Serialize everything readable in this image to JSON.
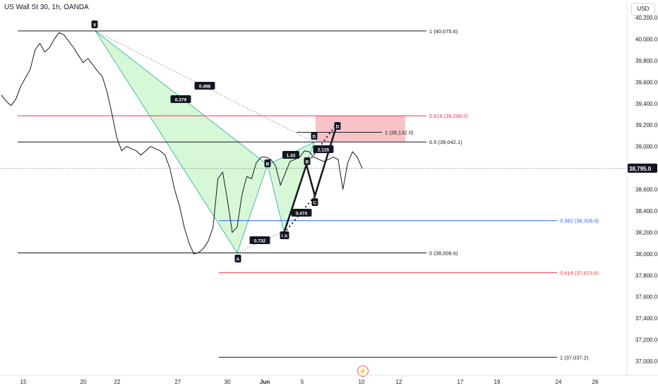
{
  "header": {
    "title": "US Wall St 30, 1h, OANDA",
    "currency": "USD"
  },
  "footer": {
    "event_icon": "lightning-icon"
  },
  "colors": {
    "price": "#131722",
    "fib_black": "#131722",
    "fib_red": "#f23645",
    "fib_blue": "#2962ff",
    "pattern_fill": "#c8f5c8",
    "pattern_edge": "#22ab94",
    "prz_fill": "#f7a9ae",
    "last_price_bg": "#131722"
  },
  "chart_data": {
    "type": "line",
    "title": "US Wall St 30, 1h, OANDA",
    "ylabel": "USD",
    "ylim": [
      37000,
      40200
    ],
    "y_ticks": [
      "40,200.0",
      "40,000.0",
      "39,800.0",
      "39,600.0",
      "39,400.0",
      "39,200.0",
      "39,000.0",
      "38,800.0",
      "38,600.0",
      "38,400.0",
      "38,200.0",
      "38,000.0",
      "37,800.0",
      "37,600.0",
      "37,400.0",
      "37,200.0",
      "37,000.0"
    ],
    "x_ticks": [
      "15",
      "20",
      "22",
      "27",
      "30",
      "Jun",
      "5",
      "10",
      "12",
      "17",
      "19",
      "24",
      "26"
    ],
    "last_price": "38,795.0",
    "series": [
      {
        "values": [
          39480,
          39420,
          39380,
          39440,
          39560,
          39640,
          39720,
          39900,
          39960,
          39880,
          39920,
          40000,
          40060,
          40040,
          39980,
          39920,
          39850,
          39780,
          39820,
          39760,
          39700,
          39650,
          39500,
          39300,
          39080,
          38960,
          39000,
          38980,
          38960,
          38920,
          38960,
          39000,
          38980,
          38960,
          38920,
          38800,
          38600,
          38450,
          38250,
          38100,
          38000,
          38010,
          38050,
          38120,
          38250,
          38700,
          38760,
          38500,
          38200,
          38250,
          38550,
          38720,
          38700,
          38850,
          38900,
          38900,
          38880,
          38820,
          38640,
          38750,
          38860,
          38880,
          38900,
          38960,
          38950,
          38900,
          38880,
          38860,
          38880,
          38900,
          38880,
          38600,
          38850,
          38950,
          38900,
          38795
        ]
      }
    ],
    "fib_levels": [
      {
        "label": "1 (40,075.6)",
        "value": 40075.6
      },
      {
        "label": "0.618 (39,286.0)",
        "value": 39286.0
      },
      {
        "label": "0.5 (39,042.1)",
        "value": 39042.1
      },
      {
        "label": "1 (39,132.0)",
        "value": 39132.0
      },
      {
        "label": "0.382 (38,309.4)",
        "value": 38309.4
      },
      {
        "label": "0 (38,008.6)",
        "value": 38008.6
      },
      {
        "label": "0.618 (37,823.6)",
        "value": 37823.6
      },
      {
        "label": "1 (37,037.2)",
        "value": 37037.2
      }
    ],
    "pattern_points": [
      {
        "label": "X",
        "value": 40075.6
      },
      {
        "label": "A",
        "value": 38008.6
      },
      {
        "label": "B",
        "value": 38830
      },
      {
        "label": "C",
        "value": 38210
      },
      {
        "label": "D",
        "value": 39040
      }
    ],
    "pattern_ratios": [
      "0.379",
      "0.498",
      "0.732",
      "1.43"
    ],
    "abcd_points": [
      {
        "label": "A",
        "value": 38190
      },
      {
        "label": "B",
        "value": 38830
      },
      {
        "label": "C",
        "value": 38540
      },
      {
        "label": "D",
        "value": 39220
      }
    ],
    "abcd_ratios": [
      "0.474",
      "2.125"
    ],
    "grid": false
  }
}
